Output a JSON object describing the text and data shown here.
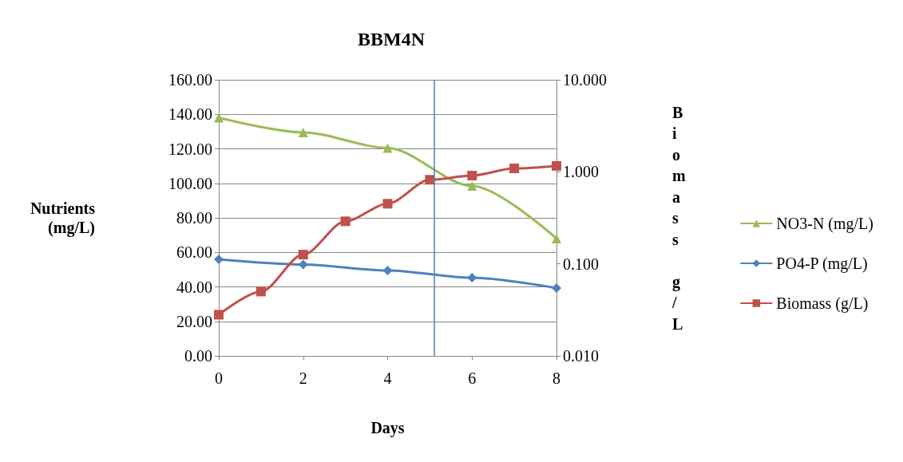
{
  "chart_data": {
    "type": "line",
    "title": "BBM4N",
    "xlabel": "Days",
    "ylabel": "Nutrients (mg/L)",
    "y2label": "Biomass g/L",
    "xlim": [
      0,
      8
    ],
    "xticks": [
      0,
      2,
      4,
      6,
      8
    ],
    "ylim": [
      0,
      160
    ],
    "yticks": [
      {
        "value": 0,
        "label": "0.00"
      },
      {
        "value": 20,
        "label": "20.00"
      },
      {
        "value": 40,
        "label": "40.00"
      },
      {
        "value": 60,
        "label": "60.00"
      },
      {
        "value": 80,
        "label": "80.00"
      },
      {
        "value": 100,
        "label": "100.00"
      },
      {
        "value": 120,
        "label": "120.00"
      },
      {
        "value": 140,
        "label": "140.00"
      },
      {
        "value": 160,
        "label": "160.00"
      }
    ],
    "y2lim": [
      0.01,
      10
    ],
    "y2ticks": [
      {
        "value": 0.01,
        "label": "0.010"
      },
      {
        "value": 0.1,
        "label": "0.100"
      },
      {
        "value": 1,
        "label": "1.000"
      },
      {
        "value": 10,
        "label": "10.000"
      }
    ],
    "log": "y2",
    "grid": "y",
    "legend": "right",
    "ref_lines": [
      {
        "axis": "x",
        "value": 5.1,
        "color": "#4f81bd"
      }
    ],
    "series": [
      {
        "name": "NO3-N (mg/L)",
        "color": "#9bbb59",
        "marker": "triangle",
        "x": [
          0,
          2,
          4,
          6,
          8
        ],
        "values": [
          138,
          129.5,
          120.5,
          98.5,
          68
        ]
      },
      {
        "name": "PO4-P (mg/L)",
        "color": "#4f81bd",
        "marker": "diamond",
        "x": [
          0,
          2,
          4,
          6,
          8
        ],
        "values": [
          56,
          53,
          49.5,
          45.3,
          39.3
        ]
      },
      {
        "name": "Biomass (g/L)",
        "color": "#c0504d",
        "marker": "square",
        "axis": "y2",
        "x": [
          0,
          1,
          2,
          3,
          4,
          5,
          6,
          7,
          8
        ],
        "values": [
          0.028,
          0.05,
          0.126,
          0.29,
          0.45,
          0.82,
          0.91,
          1.09,
          1.16
        ]
      }
    ]
  }
}
